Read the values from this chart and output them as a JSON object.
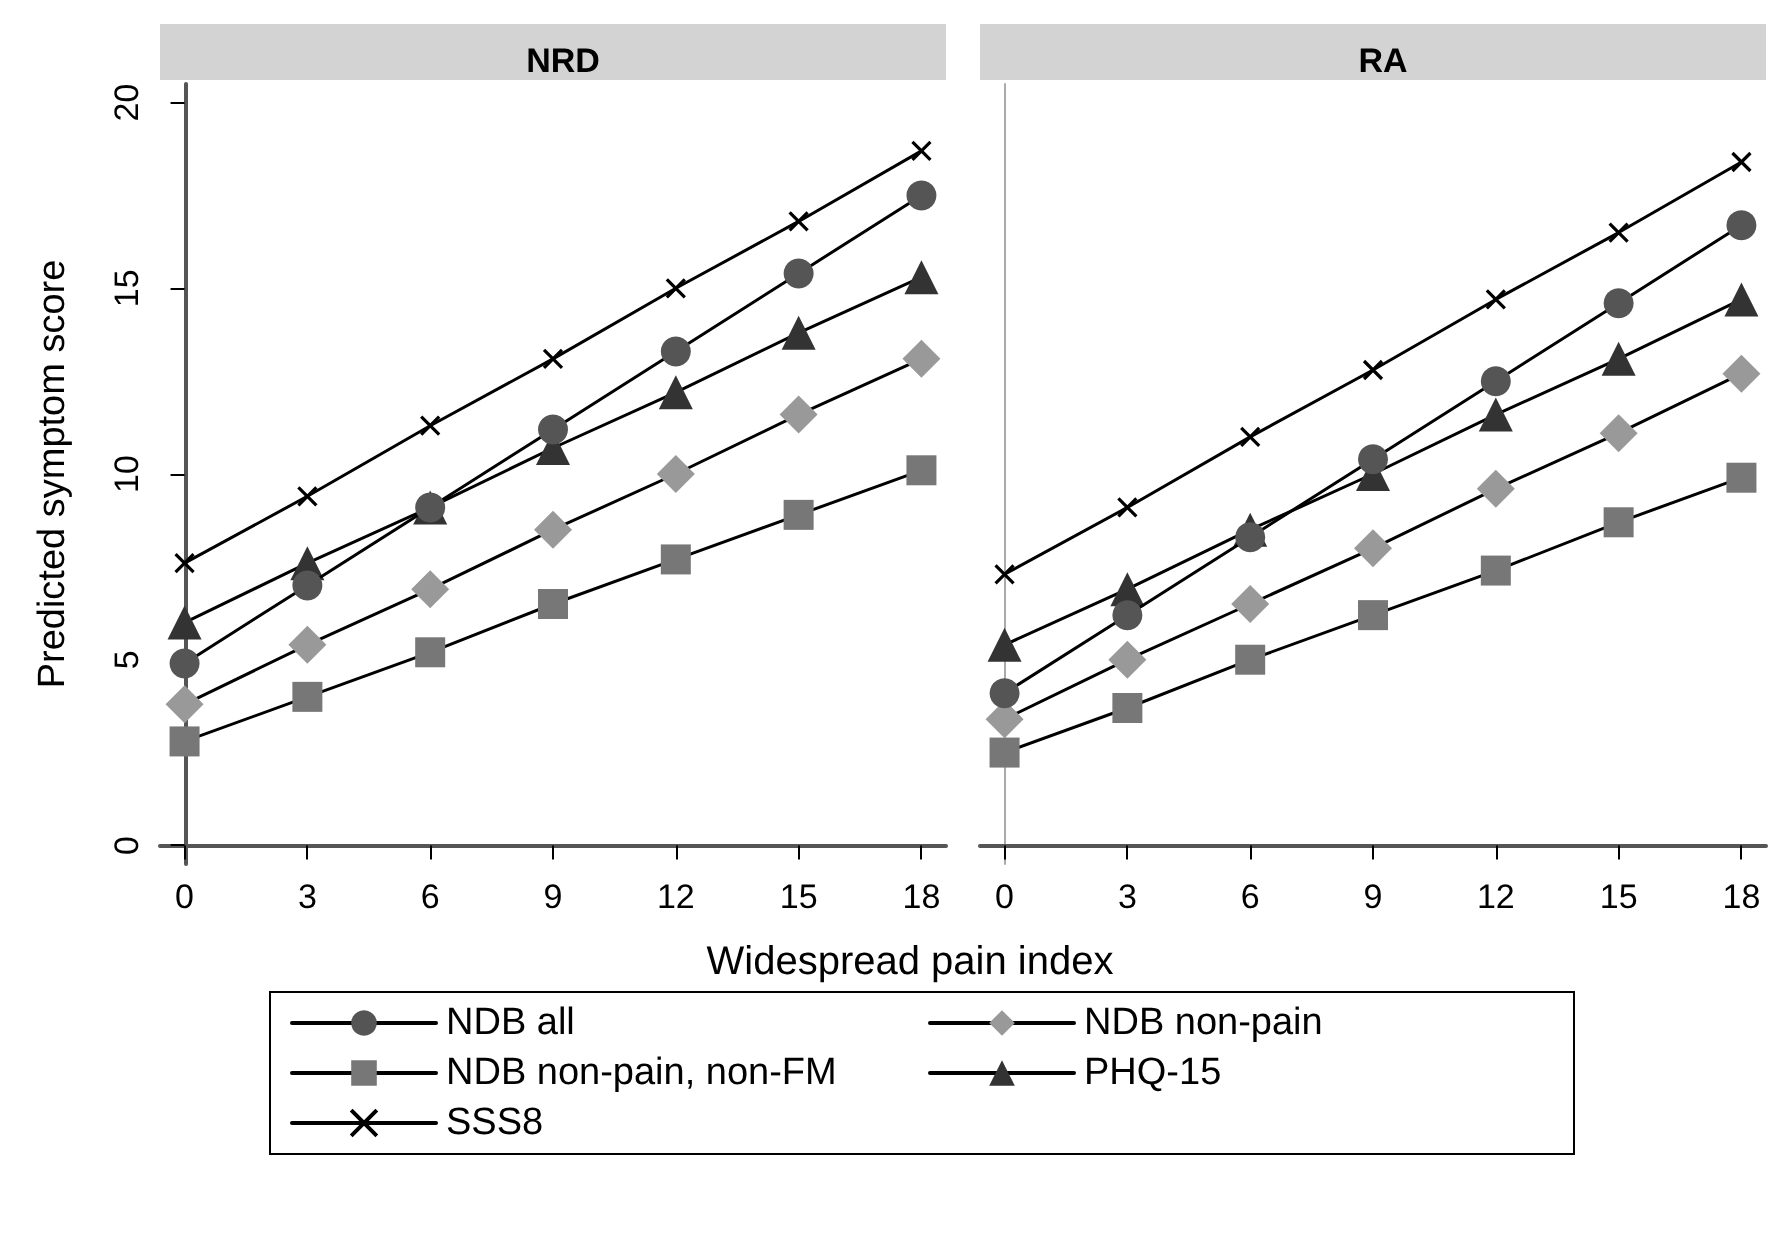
{
  "chart_data": [
    {
      "type": "line",
      "title": "NRD",
      "xlabel": "Widespread pain index",
      "ylabel": "Predicted symptom score",
      "x": [
        0,
        3,
        6,
        9,
        12,
        15,
        18
      ],
      "xlim": [
        -0.6,
        18.6
      ],
      "xticks": [
        0,
        3,
        6,
        9,
        12,
        15,
        18
      ],
      "ylim": [
        -0.5,
        20.5
      ],
      "yticks": [
        0,
        5,
        10,
        15,
        20
      ],
      "legend": "bottom",
      "series": [
        {
          "name": "NDB all",
          "color": "#555555",
          "marker": "circle",
          "values": [
            4.9,
            7.0,
            9.1,
            11.2,
            13.3,
            15.4,
            17.5
          ]
        },
        {
          "name": "NDB non-pain",
          "color": "#999999",
          "marker": "diamond",
          "values": [
            3.8,
            5.4,
            6.9,
            8.5,
            10.0,
            11.6,
            13.1
          ]
        },
        {
          "name": "NDB non-pain, non-FM",
          "color": "#777777",
          "marker": "square",
          "values": [
            2.8,
            4.0,
            5.2,
            6.5,
            7.7,
            8.9,
            10.1
          ]
        },
        {
          "name": "PHQ-15",
          "color": "#333333",
          "marker": "triangle",
          "values": [
            6.0,
            7.6,
            9.1,
            10.7,
            12.2,
            13.8,
            15.3
          ]
        },
        {
          "name": "SSS8",
          "color": "#000000",
          "marker": "cross",
          "values": [
            7.6,
            9.4,
            11.3,
            13.1,
            15.0,
            16.8,
            18.7
          ]
        }
      ]
    },
    {
      "type": "line",
      "title": "RA",
      "x": [
        0,
        3,
        6,
        9,
        12,
        15,
        18
      ],
      "xlim": [
        -0.6,
        18.6
      ],
      "xticks": [
        0,
        3,
        6,
        9,
        12,
        15,
        18
      ],
      "ylim": [
        -0.5,
        20.5
      ],
      "tick_labels": "x",
      "series": [
        {
          "color": "#555555",
          "marker": "circle",
          "values": [
            4.1,
            6.2,
            8.3,
            10.4,
            12.5,
            14.6,
            16.7
          ]
        },
        {
          "color": "#999999",
          "marker": "diamond",
          "values": [
            3.4,
            5.0,
            6.5,
            8.0,
            9.6,
            11.1,
            12.7
          ]
        },
        {
          "color": "#777777",
          "marker": "square",
          "values": [
            2.5,
            3.7,
            5.0,
            6.2,
            7.4,
            8.7,
            9.9
          ]
        },
        {
          "color": "#333333",
          "marker": "triangle",
          "values": [
            5.4,
            6.9,
            8.5,
            10.0,
            11.6,
            13.1,
            14.7
          ]
        },
        {
          "color": "#000000",
          "marker": "cross",
          "values": [
            7.3,
            9.1,
            11.0,
            12.8,
            14.7,
            16.5,
            18.4
          ]
        }
      ]
    }
  ]
}
